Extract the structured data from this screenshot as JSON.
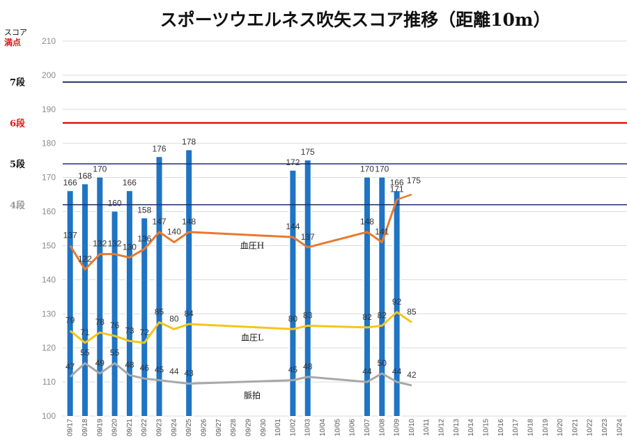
{
  "chart_data": {
    "type": "bar",
    "title": "スポーツウエルネス吹矢スコア推移（距離10m）",
    "ylabel": "スコア",
    "ylabel_sub": "満点",
    "ylim": [
      100,
      210
    ],
    "yticks": [
      100,
      110,
      120,
      130,
      140,
      150,
      160,
      170,
      180,
      190,
      200,
      210
    ],
    "dates": [
      "09/17",
      "09/18",
      "09/19",
      "09/20",
      "09/21",
      "09/22",
      "09/23",
      "09/24",
      "09/25",
      "09/26",
      "09/27",
      "09/28",
      "09/29",
      "09/30",
      "10/01",
      "10/02",
      "10/03",
      "10/04",
      "10/05",
      "10/06",
      "10/07",
      "10/08",
      "10/09",
      "10/10",
      "10/11",
      "10/12",
      "10/13",
      "10/14",
      "10/15",
      "10/16",
      "10/17",
      "10/18",
      "10/19",
      "10/20",
      "10/21",
      "10/22",
      "10/23",
      "10/24"
    ],
    "scores": [
      166,
      168,
      170,
      160,
      166,
      158,
      176,
      null,
      178,
      null,
      null,
      null,
      null,
      null,
      null,
      172,
      175,
      null,
      null,
      null,
      170,
      170,
      166,
      null,
      null,
      null,
      null,
      null,
      null,
      null,
      null,
      null,
      null,
      null,
      null,
      null,
      null,
      null
    ],
    "score_labels": [
      "166",
      "168",
      "170",
      "160",
      "166",
      "158",
      "176",
      "",
      "178",
      "",
      "",
      "",
      "",
      "",
      "",
      "172",
      "175",
      "",
      "",
      "",
      "170",
      "170",
      "166",
      "",
      "",
      "",
      "",
      "",
      "",
      "",
      "",
      "",
      "",
      "",
      "",
      "",
      "",
      ""
    ],
    "score_line": {
      "label": "175",
      "points": [
        [
          22,
          163.5
        ],
        [
          23,
          165
        ]
      ]
    },
    "rank_lines": [
      {
        "value": 198,
        "label": "7段",
        "color": "#1f2d6e",
        "label_color": "#111111",
        "width": 2
      },
      {
        "value": 186,
        "label": "6段",
        "color": "#e01818",
        "label_color": "#e01818",
        "width": 2.5
      },
      {
        "value": 174,
        "label": "5段",
        "color": "#1f2d6e",
        "label_color": "#111111",
        "width": 1.5
      },
      {
        "value": 162,
        "label": "4段",
        "color": "#1f2d6e",
        "label_color": "#9a9a9a",
        "width": 1.5
      }
    ],
    "series": [
      {
        "name": "血圧H",
        "color": "#e8792e",
        "label_value": 150,
        "labels": [
          "137",
          "122",
          "132",
          "132",
          "130",
          "136",
          "147",
          "140",
          "148",
          "144",
          "137",
          "148",
          "141",
          "171"
        ],
        "points": [
          [
            0,
            150
          ],
          [
            1,
            143
          ],
          [
            2,
            147.5
          ],
          [
            3,
            147.5
          ],
          [
            4,
            146.5
          ],
          [
            5,
            149
          ],
          [
            6,
            154
          ],
          [
            7,
            151
          ],
          [
            8,
            154
          ],
          [
            15,
            152.5
          ],
          [
            16,
            149.5
          ],
          [
            20,
            154
          ],
          [
            21,
            151
          ],
          [
            22,
            163.5
          ]
        ]
      },
      {
        "name": "血圧L",
        "color": "#f5c518",
        "label_value": 123,
        "labels": [
          "79",
          "71",
          "78",
          "76",
          "73",
          "72",
          "85",
          "80",
          "84",
          "80",
          "83",
          "82",
          "82",
          "92",
          "85"
        ],
        "points": [
          [
            0,
            125
          ],
          [
            1,
            121.5
          ],
          [
            2,
            124.5
          ],
          [
            3,
            123.5
          ],
          [
            4,
            122
          ],
          [
            5,
            121.5
          ],
          [
            6,
            127.5
          ],
          [
            7,
            125.5
          ],
          [
            8,
            127
          ],
          [
            15,
            125.5
          ],
          [
            16,
            126.5
          ],
          [
            20,
            126
          ],
          [
            21,
            126.5
          ],
          [
            22,
            130.5
          ],
          [
            23,
            127.5
          ]
        ]
      },
      {
        "name": "脈拍",
        "color": "#a8a8a8",
        "label_value": 106,
        "labels": [
          "47",
          "55",
          "49",
          "55",
          "48",
          "46",
          "45",
          "44",
          "43",
          "45",
          "48",
          "44",
          "50",
          "44",
          "42"
        ],
        "points": [
          [
            0,
            111.5
          ],
          [
            1,
            115.5
          ],
          [
            2,
            112.5
          ],
          [
            3,
            115.5
          ],
          [
            4,
            112
          ],
          [
            5,
            111
          ],
          [
            6,
            110.5
          ],
          [
            7,
            110
          ],
          [
            8,
            109.5
          ],
          [
            15,
            110.5
          ],
          [
            16,
            111.5
          ],
          [
            20,
            110
          ],
          [
            21,
            112.5
          ],
          [
            22,
            110
          ],
          [
            23,
            109
          ]
        ]
      }
    ]
  }
}
